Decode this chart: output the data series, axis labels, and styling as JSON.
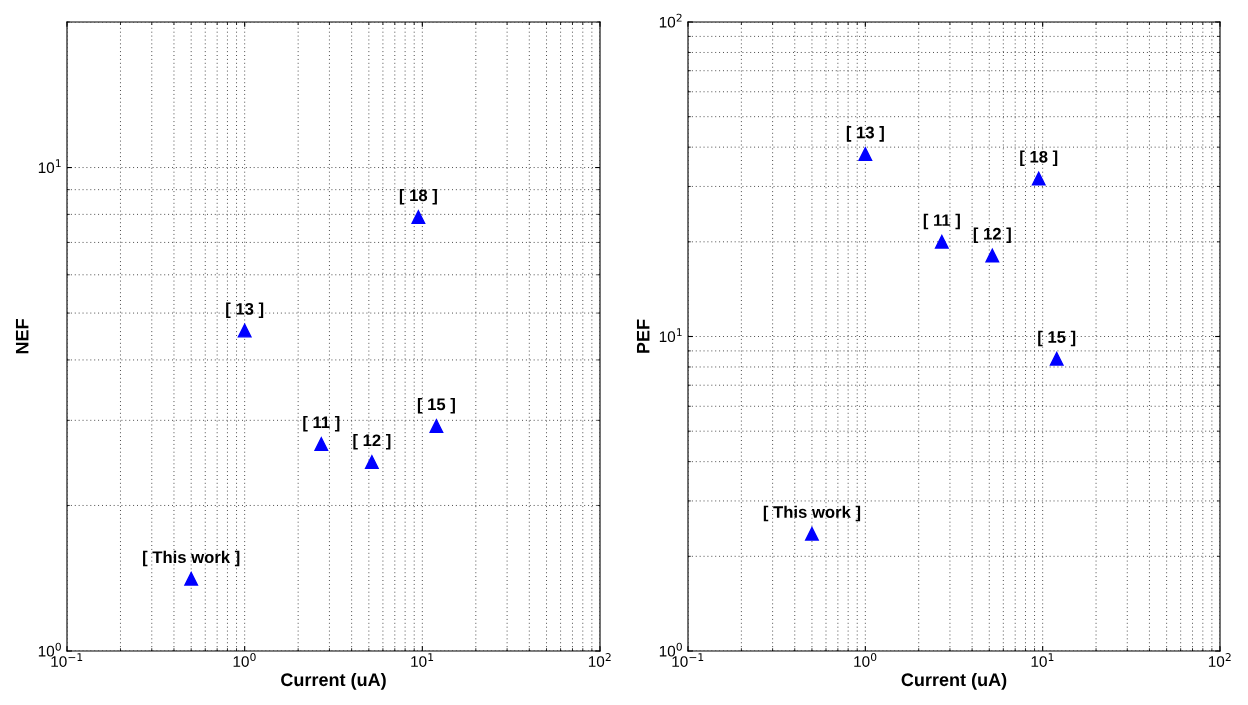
{
  "chart_data": [
    {
      "type": "scatter",
      "xlabel": "Current (uA)",
      "ylabel": "NEF",
      "log": "xy",
      "grid": true,
      "marker": "triangle",
      "x": [
        0.5,
        1.0,
        2.7,
        5.2,
        12,
        9.5
      ],
      "series": [
        {
          "color": "#0000ff",
          "values": [
            1.41,
            4.6,
            2.68,
            2.46,
            2.92,
            7.9
          ]
        }
      ],
      "annotations": [
        {
          "text": "[ This work ]",
          "x": 0.5,
          "y": 1.41
        },
        {
          "text": "[ 13 ]",
          "x": 1.0,
          "y": 4.6
        },
        {
          "text": "[ 11 ]",
          "x": 2.7,
          "y": 2.68
        },
        {
          "text": "[ 12 ]",
          "x": 5.2,
          "y": 2.46
        },
        {
          "text": "[ 15 ]",
          "x": 12,
          "y": 2.92
        },
        {
          "text": "[ 18 ]",
          "x": 9.5,
          "y": 7.9
        }
      ],
      "xlim": [
        0.1,
        100
      ],
      "ylim": [
        1,
        20
      ],
      "xticks": [
        {
          "value": 0.1,
          "label": "10$^{−1}$"
        },
        {
          "value": 1,
          "label": "10$^{0}$"
        },
        {
          "value": 10,
          "label": "10$^{1}$"
        },
        {
          "value": 100,
          "label": "10$^{2}$"
        }
      ],
      "yticks": [
        {
          "value": 1,
          "label": "10$^{0}$"
        },
        {
          "value": 10,
          "label": "10$^{1}$"
        }
      ]
    },
    {
      "type": "scatter",
      "xlabel": "Current (uA)",
      "ylabel": "PEF",
      "log": "xy",
      "grid": true,
      "marker": "triangle",
      "x": [
        0.5,
        1.0,
        2.7,
        5.2,
        12,
        9.5
      ],
      "series": [
        {
          "color": "#0000ff",
          "values": [
            2.36,
            38,
            20,
            18.1,
            8.5,
            31.8
          ]
        }
      ],
      "annotations": [
        {
          "text": "[ This work ]",
          "x": 0.5,
          "y": 2.36
        },
        {
          "text": "[ 13 ]",
          "x": 1.0,
          "y": 38
        },
        {
          "text": "[ 11 ]",
          "x": 2.7,
          "y": 20
        },
        {
          "text": "[ 12 ]",
          "x": 5.2,
          "y": 18.1
        },
        {
          "text": "[ 15 ]",
          "x": 12,
          "y": 8.5
        },
        {
          "text": "[ 18 ]",
          "x": 9.5,
          "y": 31.8
        }
      ],
      "xlim": [
        0.1,
        100
      ],
      "ylim": [
        1,
        100
      ],
      "xticks": [
        {
          "value": 0.1,
          "label": "10$^{−1}$"
        },
        {
          "value": 1,
          "label": "10$^{0}$"
        },
        {
          "value": 10,
          "label": "10$^{1}$"
        },
        {
          "value": 100,
          "label": "10$^{2}$"
        }
      ],
      "yticks": [
        {
          "value": 1,
          "label": "10$^{0}$"
        },
        {
          "value": 10,
          "label": "10$^{1}$"
        },
        {
          "value": 100,
          "label": "10$^{2}$"
        }
      ]
    }
  ]
}
